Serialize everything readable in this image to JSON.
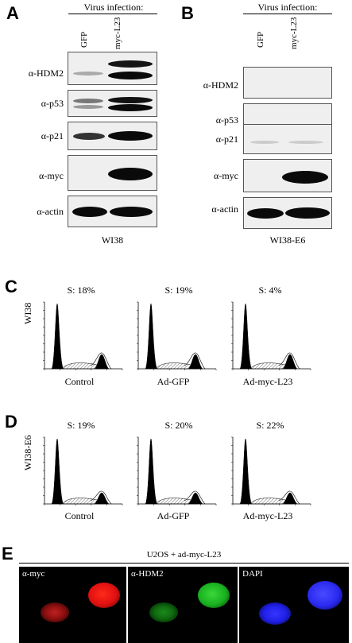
{
  "panelA": {
    "letter": "A",
    "header": "Virus infection:",
    "lanes": [
      "GFP",
      "myc-L23"
    ],
    "rows": [
      "α-HDM2",
      "α-p53",
      "α-p21",
      "α-myc",
      "α-actin"
    ],
    "cell_line": "WI38"
  },
  "panelB": {
    "letter": "B",
    "header": "Virus infection:",
    "lanes": [
      "GFP",
      "myc-L23"
    ],
    "rows": [
      "α-HDM2",
      "α-p53",
      "α-p21",
      "α-myc",
      "α-actin"
    ],
    "cell_line": "WI38-E6"
  },
  "panelC": {
    "letter": "C",
    "side_label": "WI38",
    "plots": [
      {
        "s": "S: 18%",
        "condition": "Control"
      },
      {
        "s": "S: 19%",
        "condition": "Ad-GFP"
      },
      {
        "s": "S: 4%",
        "condition": "Ad-myc-L23"
      }
    ]
  },
  "panelD": {
    "letter": "D",
    "side_label": "WI38-E6",
    "plots": [
      {
        "s": "S: 19%",
        "condition": "Control"
      },
      {
        "s": "S: 20%",
        "condition": "Ad-GFP"
      },
      {
        "s": "S: 22%",
        "condition": "Ad-myc-L23"
      }
    ]
  },
  "panelE": {
    "letter": "E",
    "header": "U2OS + ad-myc-L23",
    "images": [
      "α-myc",
      "α-HDM2",
      "DAPI"
    ],
    "colors": [
      "#e01010",
      "#19b020",
      "#2020e8"
    ]
  }
}
